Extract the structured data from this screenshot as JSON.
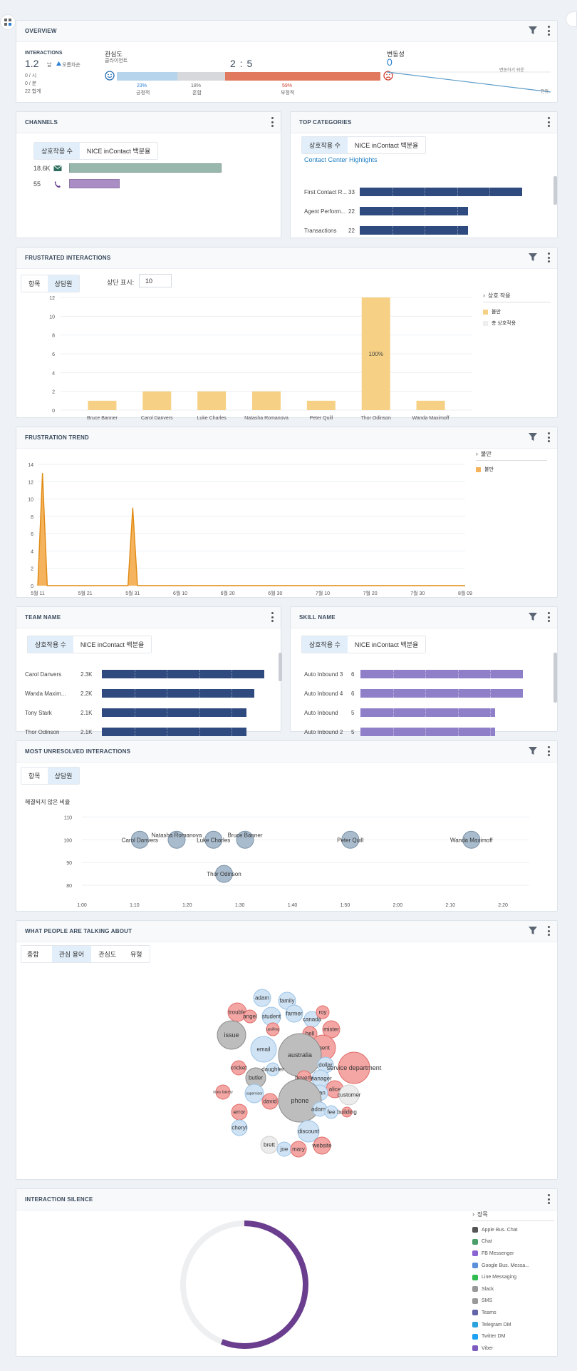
{
  "overview": {
    "title": "OVERVIEW",
    "interactions_label": "INTERACTIONS",
    "interactions_value": "1.2",
    "interactions_unit": "날",
    "trend_label": "오름차순",
    "stat1": "0 / 시",
    "stat2": "0 / 분",
    "stat3": "22 합계",
    "sentiment_label": "관심도",
    "sentiment_sub": "클라이언트",
    "ratio": "2 : 5",
    "pos_pct": "23%",
    "pos_label": "긍정적",
    "mixed_pct": "18%",
    "mixed_label": "혼합",
    "neg_pct": "59%",
    "neg_label": "부정적",
    "variability_label": "변동성",
    "variability_value": "0",
    "var_more": "변동하기 쉬운",
    "var_stable": "안정"
  },
  "channels": {
    "title": "CHANNELS",
    "tab1": "상호작용 수",
    "tab2": "NICE inContact 백분율",
    "rows": [
      {
        "value": "18.6K",
        "icon": "email-icon",
        "fraction": 1.0,
        "color": "#98b8ad"
      },
      {
        "value": "55",
        "icon": "phone-icon",
        "fraction": 0.33,
        "color": "#ab8dc6"
      }
    ]
  },
  "top_categories": {
    "title": "TOP CATEGORIES",
    "tab1": "상호작용 수",
    "tab2": "NICE inContact 백분율",
    "link": "Contact Center Highlights",
    "rows": [
      {
        "label": "First Contact R...",
        "value": "33",
        "fraction": 1.0
      },
      {
        "label": "Agent Perform...",
        "value": "22",
        "fraction": 0.667
      },
      {
        "label": "Transactions",
        "value": "22",
        "fraction": 0.667
      }
    ]
  },
  "frustrated": {
    "title": "FRUSTRATED INTERACTIONS",
    "tab1": "항목",
    "tab2": "상담원",
    "top_label": "상단 표시:",
    "top_value": "10",
    "legend_head": "상호 작용",
    "legend1": "불만",
    "legend2": "총 상호작용",
    "bar_label": "100%",
    "chart_data": {
      "type": "bar",
      "categories": [
        "Bruce Banner",
        "Carol Danvers",
        "Luke Charles",
        "Natasha Romanova",
        "Peter Quill",
        "Thor Odinson",
        "Wanda Maximoff"
      ],
      "values": [
        1,
        2,
        2,
        2,
        1,
        12,
        1
      ],
      "ylim": [
        0,
        12
      ],
      "yticks": [
        "0",
        "2",
        "4",
        "6",
        "8",
        "10",
        "12"
      ]
    }
  },
  "trend": {
    "title": "FRUSTRATION TREND",
    "legend_head": "불만",
    "legend1": "불만",
    "chart_data": {
      "type": "area",
      "xticks": [
        "5월 11",
        "5월 21",
        "5월 31",
        "6월 10",
        "6월 20",
        "6월 30",
        "7월 10",
        "7월 20",
        "7월 30",
        "8월 09"
      ],
      "yticks": [
        "0",
        "2",
        "4",
        "6",
        "8",
        "10",
        "12",
        "14"
      ],
      "ylim": [
        0,
        14
      ],
      "x": [
        "5월 11",
        "5월 12",
        "5월 13",
        "5월 14",
        "5월 30",
        "5월 31",
        "6월 1",
        "8월 09"
      ],
      "y": [
        0,
        13,
        0,
        0,
        0,
        9,
        0,
        0
      ]
    }
  },
  "team": {
    "title": "TEAM NAME",
    "tab1": "상호작용 수",
    "tab2": "NICE inContact 백분율",
    "rows": [
      {
        "label": "Carol Danvers",
        "value": "2.3K",
        "fraction": 1.0
      },
      {
        "label": "Wanda Maxim...",
        "value": "2.2K",
        "fraction": 0.94
      },
      {
        "label": "Tony Stark",
        "value": "2.1K",
        "fraction": 0.89
      },
      {
        "label": "Thor Odinson",
        "value": "2.1K",
        "fraction": 0.89
      }
    ]
  },
  "skill": {
    "title": "SKILL NAME",
    "tab1": "상호작용 수",
    "tab2": "NICE inContact 백분율",
    "rows": [
      {
        "label": "Auto Inbound 3",
        "value": "6",
        "fraction": 1.0
      },
      {
        "label": "Auto Inbound 4",
        "value": "6",
        "fraction": 1.0
      },
      {
        "label": "Auto Inbound",
        "value": "5",
        "fraction": 0.83
      },
      {
        "label": "Auto Inbound 2",
        "value": "5",
        "fraction": 0.83
      }
    ]
  },
  "unresolved": {
    "title": "MOST UNRESOLVED INTERACTIONS",
    "tab1": "항목",
    "tab2": "상담원",
    "ylabel": "해결되지 않은 비율",
    "chart_data": {
      "type": "scatter",
      "xticks": [
        "1:00",
        "1:10",
        "1:20",
        "1:30",
        "1:40",
        "1:50",
        "2:00",
        "2:10",
        "2:20"
      ],
      "yticks": [
        "80",
        "90",
        "100",
        "110"
      ],
      "xlim_minutes": [
        60,
        145
      ],
      "ylim": [
        75,
        112
      ],
      "points": [
        {
          "name": "Carol Danvers",
          "x": 71,
          "y": 100
        },
        {
          "name": "Natasha Romanova",
          "x": 78,
          "y": 100
        },
        {
          "name": "Luke Charles",
          "x": 85,
          "y": 100
        },
        {
          "name": "Bruce Banner",
          "x": 91,
          "y": 100
        },
        {
          "name": "Thor Odinson",
          "x": 87,
          "y": 85
        },
        {
          "name": "Peter Quill",
          "x": 111,
          "y": 100
        },
        {
          "name": "Wanda Maximoff",
          "x": 134,
          "y": 100
        }
      ]
    }
  },
  "talking": {
    "title": "WHAT PEOPLE ARE TALKING ABOUT",
    "tabs": [
      "종합",
      "관심 용어",
      "관심도",
      "유형"
    ],
    "bubbles": [
      {
        "t": "adam",
        "c": "b"
      },
      {
        "t": "family",
        "c": "b"
      },
      {
        "t": "trouble",
        "c": "r"
      },
      {
        "t": "angel",
        "c": "r"
      },
      {
        "t": "student",
        "c": "b"
      },
      {
        "t": "farmer",
        "c": "b"
      },
      {
        "t": "canada",
        "c": "b"
      },
      {
        "t": "roy",
        "c": "r"
      },
      {
        "t": "upsilling",
        "c": "r"
      },
      {
        "t": "mister",
        "c": "r"
      },
      {
        "t": "issue",
        "c": "g"
      },
      {
        "t": "bell",
        "c": "r"
      },
      {
        "t": "agent",
        "c": "r"
      },
      {
        "t": "email",
        "c": "b"
      },
      {
        "t": "australia",
        "c": "g"
      },
      {
        "t": "dollar",
        "c": "b"
      },
      {
        "t": "cricket",
        "c": "r"
      },
      {
        "t": "service department",
        "c": "r"
      },
      {
        "t": "manager",
        "c": "b"
      },
      {
        "t": "butler",
        "c": "g"
      },
      {
        "t": "beverly",
        "c": "r"
      },
      {
        "t": "daughter",
        "c": "b"
      },
      {
        "t": "alice",
        "c": "r"
      },
      {
        "t": "mary bakery",
        "c": "r"
      },
      {
        "t": "supervisor",
        "c": "b"
      },
      {
        "t": "man",
        "c": "b"
      },
      {
        "t": "phone",
        "c": "g"
      },
      {
        "t": "customer",
        "c": "w"
      },
      {
        "t": "david",
        "c": "r"
      },
      {
        "t": "adams",
        "c": "b"
      },
      {
        "t": "fee",
        "c": "b"
      },
      {
        "t": "building",
        "c": "r"
      },
      {
        "t": "error",
        "c": "r"
      },
      {
        "t": "cheryl",
        "c": "b"
      },
      {
        "t": "discount",
        "c": "b"
      },
      {
        "t": "brett",
        "c": "w"
      },
      {
        "t": "joe",
        "c": "b"
      },
      {
        "t": "mary",
        "c": "r"
      },
      {
        "t": "website",
        "c": "r"
      }
    ]
  },
  "silence": {
    "title": "INTERACTION SILENCE",
    "legend_head": "장목",
    "fraction": 0.56,
    "legend": [
      {
        "label": "Apple Bus. Chat",
        "icon": "apple-icon"
      },
      {
        "label": "Chat",
        "icon": "chat-icon"
      },
      {
        "label": "FB Messenger",
        "icon": "messenger-icon"
      },
      {
        "label": "Google Bus. Messa...",
        "icon": "google-chat-icon"
      },
      {
        "label": "Line Messaging",
        "icon": "line-icon"
      },
      {
        "label": "Slack",
        "icon": "slack-icon"
      },
      {
        "label": "SMS",
        "icon": "sms-icon"
      },
      {
        "label": "Teams",
        "icon": "teams-icon"
      },
      {
        "label": "Telegram DM",
        "icon": "telegram-icon"
      },
      {
        "label": "Twitter DM",
        "icon": "twitter-icon"
      },
      {
        "label": "Viber",
        "icon": "viber-icon"
      }
    ]
  }
}
